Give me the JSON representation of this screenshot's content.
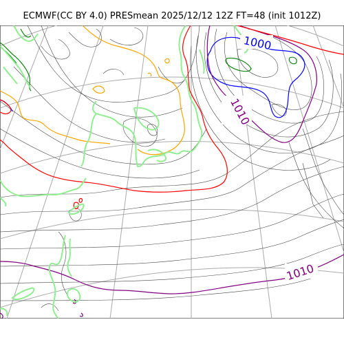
{
  "title": "ECMWF(CC BY 4.0) PRESmean 2025/12/12 12Z FT=48 (init 1012Z)",
  "map": {
    "isobar_labels": [
      {
        "text": "1000",
        "color": "#0000ff"
      },
      {
        "text": "1010",
        "color": "#800080"
      },
      {
        "text": "1010",
        "color": "#800080"
      }
    ],
    "colors": {
      "background": "#ffffff",
      "contour_thin": "#333333",
      "graticule": "#aaaaaa",
      "coast": "#90ee90",
      "isobar_1000": "#0000ff",
      "isobar_1010": "#800080",
      "isobar_1020": "#ff0000",
      "isobar_1030": "#ffa500",
      "isobar_990": "#008000"
    }
  }
}
